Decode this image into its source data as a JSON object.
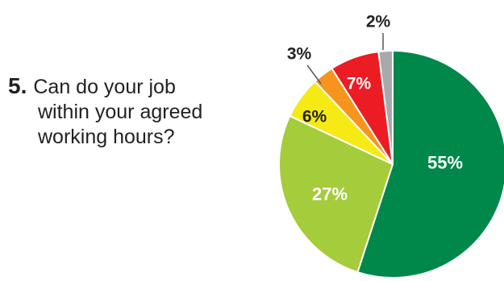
{
  "question": {
    "number": "5.",
    "lines": [
      "Can do your job",
      "within your agreed",
      "working hours?"
    ]
  },
  "chart_data": {
    "type": "pie",
    "start_angle_deg": 0,
    "direction": "clockwise",
    "slices": [
      {
        "label": "55%",
        "value": 55,
        "color": "#00874a"
      },
      {
        "label": "27%",
        "value": 27,
        "color": "#a5cc3a"
      },
      {
        "label": "6%",
        "value": 6,
        "color": "#f5ea14"
      },
      {
        "label": "3%",
        "value": 3,
        "color": "#f7941d"
      },
      {
        "label": "7%",
        "value": 7,
        "color": "#ec1c24"
      },
      {
        "label": "2%",
        "value": 2,
        "color": "#a7a9ac"
      }
    ]
  }
}
